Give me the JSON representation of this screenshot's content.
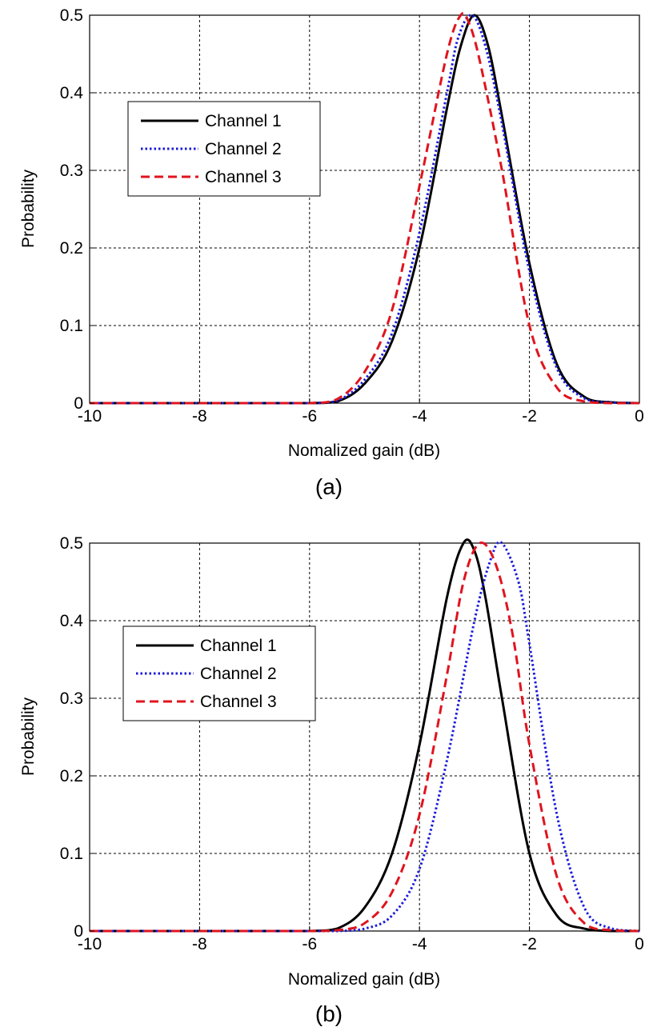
{
  "chart_data": [
    {
      "type": "line",
      "caption": "(a)",
      "xlabel": "Nomalized gain (dB)",
      "ylabel": "Probability",
      "xlim": [
        -10,
        0
      ],
      "ylim": [
        0,
        0.5
      ],
      "xticks": [
        "-10",
        "-8",
        "-6",
        "-4",
        "-2",
        "0"
      ],
      "yticks": [
        "0",
        "0.1",
        "0.2",
        "0.3",
        "0.4",
        "0.5"
      ],
      "grid": true,
      "legend_position": "upper-left",
      "series": [
        {
          "name": "Channel 1",
          "color": "#000000",
          "style": "solid",
          "x": [
            -10,
            -9,
            -8,
            -7,
            -6,
            -5.5,
            -5,
            -4.5,
            -4,
            -3.5,
            -3.25,
            -3,
            -2.75,
            -2.5,
            -2,
            -1.5,
            -1,
            -0.5,
            0
          ],
          "y": [
            0,
            0,
            0,
            0,
            0,
            0.002,
            0.025,
            0.08,
            0.2,
            0.38,
            0.46,
            0.5,
            0.46,
            0.37,
            0.18,
            0.05,
            0.008,
            0.001,
            0
          ]
        },
        {
          "name": "Channel 2",
          "color": "#1a1adb",
          "style": "dotted",
          "x": [
            -10,
            -9,
            -8,
            -7,
            -6,
            -5.5,
            -5,
            -4.5,
            -4,
            -3.5,
            -3.3,
            -3.05,
            -2.8,
            -2.5,
            -2,
            -1.5,
            -1,
            -0.5,
            0
          ],
          "y": [
            0,
            0,
            0,
            0,
            0,
            0.003,
            0.03,
            0.09,
            0.22,
            0.4,
            0.47,
            0.5,
            0.46,
            0.36,
            0.17,
            0.045,
            0.006,
            0.001,
            0
          ]
        },
        {
          "name": "Channel 3",
          "color": "#e0141e",
          "style": "dashed",
          "x": [
            -10,
            -9,
            -8,
            -7,
            -6,
            -5.5,
            -5,
            -4.5,
            -4,
            -3.5,
            -3.25,
            -3.1,
            -2.9,
            -2.5,
            -2,
            -1.5,
            -1,
            -0.5,
            0
          ],
          "y": [
            0,
            0,
            0,
            0,
            0,
            0.005,
            0.04,
            0.12,
            0.28,
            0.45,
            0.5,
            0.49,
            0.44,
            0.3,
            0.1,
            0.02,
            0.002,
            0,
            0
          ]
        }
      ]
    },
    {
      "type": "line",
      "caption": "(b)",
      "xlabel": "Nomalized gain (dB)",
      "ylabel": "Probability",
      "xlim": [
        -10,
        0
      ],
      "ylim": [
        0,
        0.5
      ],
      "xticks": [
        "-10",
        "-8",
        "-6",
        "-4",
        "-2",
        "0"
      ],
      "yticks": [
        "0",
        "0.1",
        "0.2",
        "0.3",
        "0.4",
        "0.5"
      ],
      "grid": true,
      "legend_position": "upper-left",
      "series": [
        {
          "name": "Channel 1",
          "color": "#000000",
          "style": "solid",
          "x": [
            -10,
            -9,
            -8,
            -7,
            -6,
            -5.5,
            -5,
            -4.5,
            -4,
            -3.5,
            -3.2,
            -3.0,
            -2.8,
            -2.5,
            -2,
            -1.5,
            -1,
            -0.5,
            0
          ],
          "y": [
            0,
            0,
            0,
            0,
            0,
            0.003,
            0.03,
            0.1,
            0.24,
            0.43,
            0.5,
            0.49,
            0.43,
            0.3,
            0.1,
            0.02,
            0.003,
            0,
            0
          ]
        },
        {
          "name": "Channel 2",
          "color": "#1a1adb",
          "style": "dotted",
          "x": [
            -10,
            -9,
            -8,
            -7,
            -6,
            -5.5,
            -5,
            -4.5,
            -4,
            -3.5,
            -3,
            -2.7,
            -2.5,
            -2.2,
            -2,
            -1.5,
            -1,
            -0.5,
            0
          ],
          "y": [
            0,
            0,
            0,
            0,
            0,
            0,
            0.003,
            0.02,
            0.08,
            0.22,
            0.4,
            0.48,
            0.5,
            0.45,
            0.37,
            0.15,
            0.03,
            0.003,
            0
          ]
        },
        {
          "name": "Channel 3",
          "color": "#e0141e",
          "style": "dashed",
          "x": [
            -10,
            -9,
            -8,
            -7,
            -6,
            -5.5,
            -5,
            -4.5,
            -4,
            -3.5,
            -3.2,
            -2.9,
            -2.6,
            -2.3,
            -2,
            -1.5,
            -1,
            -0.5,
            0
          ],
          "y": [
            0,
            0,
            0,
            0,
            0,
            0.001,
            0.01,
            0.05,
            0.15,
            0.33,
            0.45,
            0.5,
            0.47,
            0.38,
            0.24,
            0.07,
            0.01,
            0.001,
            0
          ]
        }
      ]
    }
  ]
}
